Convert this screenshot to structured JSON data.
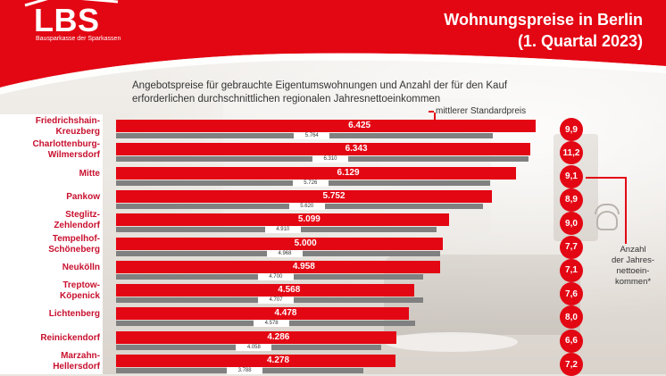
{
  "brand": {
    "logo_text": "LBS",
    "logo_subtitle": "Bausparkasse der Sparkassen",
    "color": "#e30613"
  },
  "title": {
    "line1": "Wohnungspreise in Berlin",
    "line2": "(1. Quartal 2023)"
  },
  "subtitle": "Angebotspreise für gebrauchte Eigentumswohnungen und Anzahl der für den Kauf erforderlichen durchschnittlichen regionalen Jahresnettoeinkommen",
  "legend": {
    "standard_price": "mittlerer Standardpreis",
    "income": [
      "Anzahl",
      "der Jahres-",
      "nettoein-",
      "kommen*"
    ]
  },
  "chart_data": {
    "type": "bar",
    "orientation": "horizontal",
    "categories": [
      [
        "Friedrichshain-",
        "Kreuzberg"
      ],
      [
        "Charlottenburg-",
        "Wilmersdorf"
      ],
      [
        "Mitte"
      ],
      [
        "Pankow"
      ],
      [
        "Steglitz-",
        "Zehlendorf"
      ],
      [
        "Tempelhof-",
        "Schöneberg"
      ],
      [
        "Neukölln"
      ],
      [
        "Treptow-",
        "Köpenick"
      ],
      [
        "Lichtenberg"
      ],
      [
        "Reinickendorf"
      ],
      [
        "Marzahn-",
        "Hellersdorf"
      ]
    ],
    "series": [
      {
        "color": "#e30613",
        "values": [
          6425,
          6343,
          6129,
          5752,
          5099,
          5000,
          4958,
          4568,
          4478,
          4286,
          4278
        ],
        "labels": [
          "6.425",
          "6.343",
          "6.129",
          "5.752",
          "5.099",
          "5.000",
          "4.958",
          "4.568",
          "4.478",
          "4.286",
          "4.278"
        ]
      },
      {
        "color": "#808080",
        "values": [
          5764,
          6310,
          5726,
          5620,
          4910,
          4968,
          4700,
          4707,
          4578,
          4058,
          3788
        ],
        "labels": [
          "5.764",
          "6.310",
          "5.726",
          "5.620",
          "4.910",
          "4.968",
          "4.700",
          "4.707",
          "4.578",
          "4.058",
          "3.788"
        ]
      }
    ],
    "income_multiples": [
      "9,9",
      "11,2",
      "9,1",
      "8,9",
      "9,0",
      "7,7",
      "7,1",
      "7,6",
      "8,0",
      "6,6",
      "7,2"
    ],
    "xlim": [
      0,
      6800
    ]
  }
}
